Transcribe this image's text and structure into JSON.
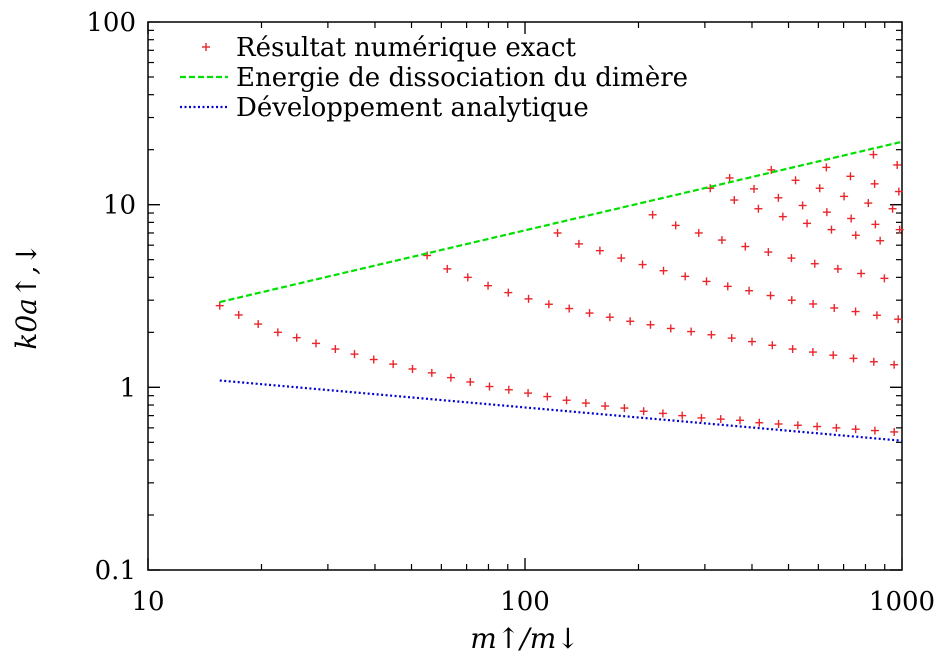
{
  "chart_data": {
    "type": "scatter",
    "xlabel": "m↑/m↓",
    "ylabel": "k0a↑,↓",
    "xscale": "log",
    "yscale": "log",
    "xlim": [
      10,
      1000
    ],
    "ylim": [
      0.1,
      100
    ],
    "x_ticks": [
      {
        "value": 10,
        "label": "10"
      },
      {
        "value": 100,
        "label": "100"
      },
      {
        "value": 1000,
        "label": "1000"
      }
    ],
    "y_ticks": [
      {
        "value": 0.1,
        "label": "0.1"
      },
      {
        "value": 1,
        "label": "1"
      },
      {
        "value": 10,
        "label": "10"
      },
      {
        "value": 100,
        "label": "100"
      }
    ],
    "legend_position": "top-left",
    "grid": false,
    "series": [
      {
        "name": "Résultat numérique exact",
        "style": "plus-markers",
        "color": "#e8262b",
        "branches": [
          {
            "x": [
              15.5,
              17.4,
              19.6,
              22.1,
              24.8,
              27.9,
              31.4,
              35.3,
              39.7,
              44.7,
              50.3,
              56.6,
              63.6,
              71.6,
              80.5,
              90.6,
              101.9,
              114.6,
              128.9,
              145,
              163.1,
              183.5,
              206.4,
              232.2,
              261.2,
              293.8,
              330.5,
              371.8,
              418.3,
              470.5,
              529.3,
              595.4,
              669.8,
              753.5,
              847.6,
              953.5
            ],
            "y": [
              2.8,
              2.49,
              2.22,
              2.0,
              1.87,
              1.74,
              1.62,
              1.52,
              1.42,
              1.34,
              1.26,
              1.2,
              1.13,
              1.07,
              1.01,
              0.97,
              0.93,
              0.89,
              0.85,
              0.82,
              0.79,
              0.77,
              0.74,
              0.72,
              0.7,
              0.68,
              0.67,
              0.66,
              0.64,
              0.63,
              0.62,
              0.61,
              0.6,
              0.59,
              0.58,
              0.57
            ]
          },
          {
            "x": [
              55,
              62.2,
              70.5,
              79.8,
              90.3,
              102.2,
              115.7,
              131,
              148.3,
              167.9,
              190.1,
              215.2,
              243.6,
              275.8,
              312.2,
              353.4,
              400.1,
              452.9,
              512.7,
              580.4,
              657,
              743.7,
              841.9,
              953.1
            ],
            "y": [
              5.27,
              4.45,
              4.0,
              3.6,
              3.3,
              3.05,
              2.85,
              2.7,
              2.55,
              2.42,
              2.3,
              2.2,
              2.1,
              2.02,
              1.94,
              1.86,
              1.78,
              1.7,
              1.62,
              1.56,
              1.5,
              1.44,
              1.38,
              1.33
            ]
          },
          {
            "x": [
              122,
              139,
              158,
              180,
              205,
              233,
              266,
              303,
              345,
              393,
              448,
              510,
              581,
              661,
              753,
              858,
              977
            ],
            "y": [
              7.0,
              6.1,
              5.6,
              5.1,
              4.7,
              4.35,
              4.05,
              3.8,
              3.57,
              3.38,
              3.18,
              3.0,
              2.86,
              2.72,
              2.6,
              2.48,
              2.36
            ]
          },
          {
            "x": [
              218,
              251,
              289,
              333,
              384,
              442,
              509,
              587,
              676,
              779,
              898
            ],
            "y": [
              8.8,
              7.7,
              7.0,
              6.4,
              5.9,
              5.5,
              5.1,
              4.75,
              4.45,
              4.2,
              3.95
            ]
          },
          {
            "x": [
              310,
              359,
              416,
              483,
              560,
              650,
              754,
              875,
              1015
            ],
            "y": [
              12.3,
              10.6,
              9.5,
              8.6,
              7.9,
              7.3,
              6.8,
              6.35,
              5.95
            ]
          },
          {
            "x": [
              349,
              405,
              470,
              545,
              632,
              733,
              850,
              986
            ],
            "y": [
              14.0,
              12.2,
              10.9,
              9.9,
              9.1,
              8.4,
              7.8,
              7.3
            ]
          },
          {
            "x": [
              450,
              522,
              605,
              702,
              814,
              944
            ],
            "y": [
              15.5,
              13.6,
              12.3,
              11.1,
              10.2,
              9.5
            ]
          },
          {
            "x": [
              630,
              730,
              846,
              981
            ],
            "y": [
              16.0,
              14.3,
              13.0,
              11.8
            ]
          },
          {
            "x": [
              840,
              971
            ],
            "y": [
              18.8,
              16.5
            ]
          }
        ]
      },
      {
        "name": "Energie de dissociation du dimère",
        "style": "dashed-line",
        "color": "#00e000",
        "x": [
          15.5,
          1000
        ],
        "y": [
          2.93,
          22.1
        ]
      },
      {
        "name": "Développement analytique",
        "style": "dotted-line",
        "color": "#0000d0",
        "x": [
          15.5,
          1000
        ],
        "y": [
          1.09,
          0.51
        ]
      }
    ]
  }
}
